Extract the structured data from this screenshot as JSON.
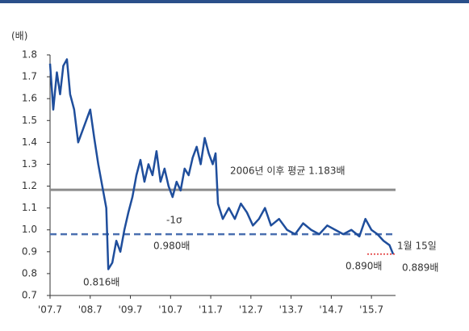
{
  "chart_data": {
    "type": "line",
    "y_unit": "(배)",
    "x": [
      2007.5,
      2007.58,
      2007.67,
      2007.75,
      2007.83,
      2007.92,
      2008.0,
      2008.1,
      2008.2,
      2008.3,
      2008.4,
      2008.5,
      2008.6,
      2008.7,
      2008.8,
      2008.9,
      2008.95,
      2009.05,
      2009.15,
      2009.25,
      2009.35,
      2009.45,
      2009.55,
      2009.65,
      2009.75,
      2009.85,
      2009.95,
      2010.05,
      2010.15,
      2010.25,
      2010.35,
      2010.45,
      2010.55,
      2010.65,
      2010.75,
      2010.85,
      2010.95,
      2011.05,
      2011.15,
      2011.25,
      2011.35,
      2011.45,
      2011.55,
      2011.62,
      2011.68,
      2011.8,
      2011.95,
      2012.1,
      2012.25,
      2012.4,
      2012.55,
      2012.7,
      2012.85,
      2013.0,
      2013.2,
      2013.4,
      2013.6,
      2013.8,
      2014.0,
      2014.2,
      2014.4,
      2014.6,
      2014.8,
      2015.0,
      2015.2,
      2015.35,
      2015.5,
      2015.65,
      2015.8,
      2015.95,
      2016.04
    ],
    "series": [
      {
        "color": "#1f4e9c",
        "values": [
          1.76,
          1.55,
          1.72,
          1.62,
          1.75,
          1.78,
          1.62,
          1.55,
          1.4,
          1.45,
          1.5,
          1.55,
          1.42,
          1.3,
          1.2,
          1.1,
          0.82,
          0.85,
          0.95,
          0.9,
          1.0,
          1.08,
          1.15,
          1.25,
          1.32,
          1.22,
          1.3,
          1.25,
          1.36,
          1.22,
          1.28,
          1.2,
          1.15,
          1.22,
          1.18,
          1.28,
          1.25,
          1.33,
          1.38,
          1.3,
          1.42,
          1.35,
          1.3,
          1.35,
          1.12,
          1.05,
          1.1,
          1.05,
          1.12,
          1.08,
          1.02,
          1.05,
          1.1,
          1.02,
          1.05,
          1.0,
          0.98,
          1.03,
          1.0,
          0.98,
          1.02,
          1.0,
          0.98,
          1.0,
          0.97,
          1.05,
          1.0,
          0.98,
          0.95,
          0.93,
          0.889
        ]
      }
    ],
    "reference_lines": [
      {
        "value": 1.183,
        "color": "#8c8c8c",
        "dashed": false
      },
      {
        "value": 0.98,
        "color": "#4a6fb0",
        "dashed": true
      }
    ],
    "annotations": [
      "2006년 이후 평균 1.183배",
      "-1σ",
      "0.980배",
      "0.816배",
      "1월 15일",
      "0.890배",
      "0.889배"
    ],
    "xlim": [
      2007.5,
      2016.1
    ],
    "xticks": [
      {
        "value": 2007.5,
        "label": "'07.7"
      },
      {
        "value": 2008.5,
        "label": "'08.7"
      },
      {
        "value": 2009.5,
        "label": "'09.7"
      },
      {
        "value": 2010.5,
        "label": "'10.7"
      },
      {
        "value": 2011.5,
        "label": "'11.7"
      },
      {
        "value": 2012.5,
        "label": "'12.7"
      },
      {
        "value": 2013.5,
        "label": "'13.7"
      },
      {
        "value": 2014.5,
        "label": "'14.7"
      },
      {
        "value": 2015.5,
        "label": "'15.7"
      }
    ],
    "ylim": [
      0.7,
      1.8
    ],
    "yticks": [
      {
        "value": 0.7,
        "label": "0.7"
      },
      {
        "value": 0.8,
        "label": "0.8"
      },
      {
        "value": 0.9,
        "label": "0.9"
      },
      {
        "value": 1.0,
        "label": "1.0"
      },
      {
        "value": 1.1,
        "label": "1.1"
      },
      {
        "value": 1.2,
        "label": "1.2"
      },
      {
        "value": 1.3,
        "label": "1.3"
      },
      {
        "value": 1.4,
        "label": "1.4"
      },
      {
        "value": 1.5,
        "label": "1.5"
      },
      {
        "value": 1.6,
        "label": "1.6"
      },
      {
        "value": 1.7,
        "label": "1.7"
      },
      {
        "value": 1.8,
        "label": "1.8"
      }
    ]
  }
}
